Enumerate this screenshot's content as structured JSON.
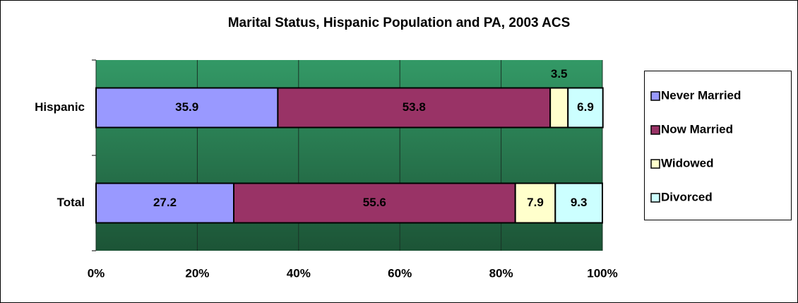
{
  "chart_data": {
    "type": "stacked_barh",
    "title": "Marital Status, Hispanic Population and PA, 2003 ACS",
    "categories": [
      "Hispanic",
      "Total"
    ],
    "series": [
      {
        "name": "Never Married",
        "color": "#9999ff",
        "values": [
          35.9,
          27.2
        ]
      },
      {
        "name": "Now Married",
        "color": "#993366",
        "values": [
          53.8,
          55.6
        ]
      },
      {
        "name": "Widowed",
        "color": "#ffffcc",
        "values": [
          3.5,
          7.9
        ]
      },
      {
        "name": "Divorced",
        "color": "#ccffff",
        "values": [
          6.9,
          9.3
        ]
      }
    ],
    "xlim": [
      0,
      100
    ],
    "xticks": [
      {
        "value": 0,
        "label": "0%"
      },
      {
        "value": 20,
        "label": "20%"
      },
      {
        "value": 40,
        "label": "40%"
      },
      {
        "value": 60,
        "label": "60%"
      },
      {
        "value": 80,
        "label": "80%"
      },
      {
        "value": 100,
        "label": "100%"
      }
    ],
    "grid": true,
    "legend": "right"
  }
}
